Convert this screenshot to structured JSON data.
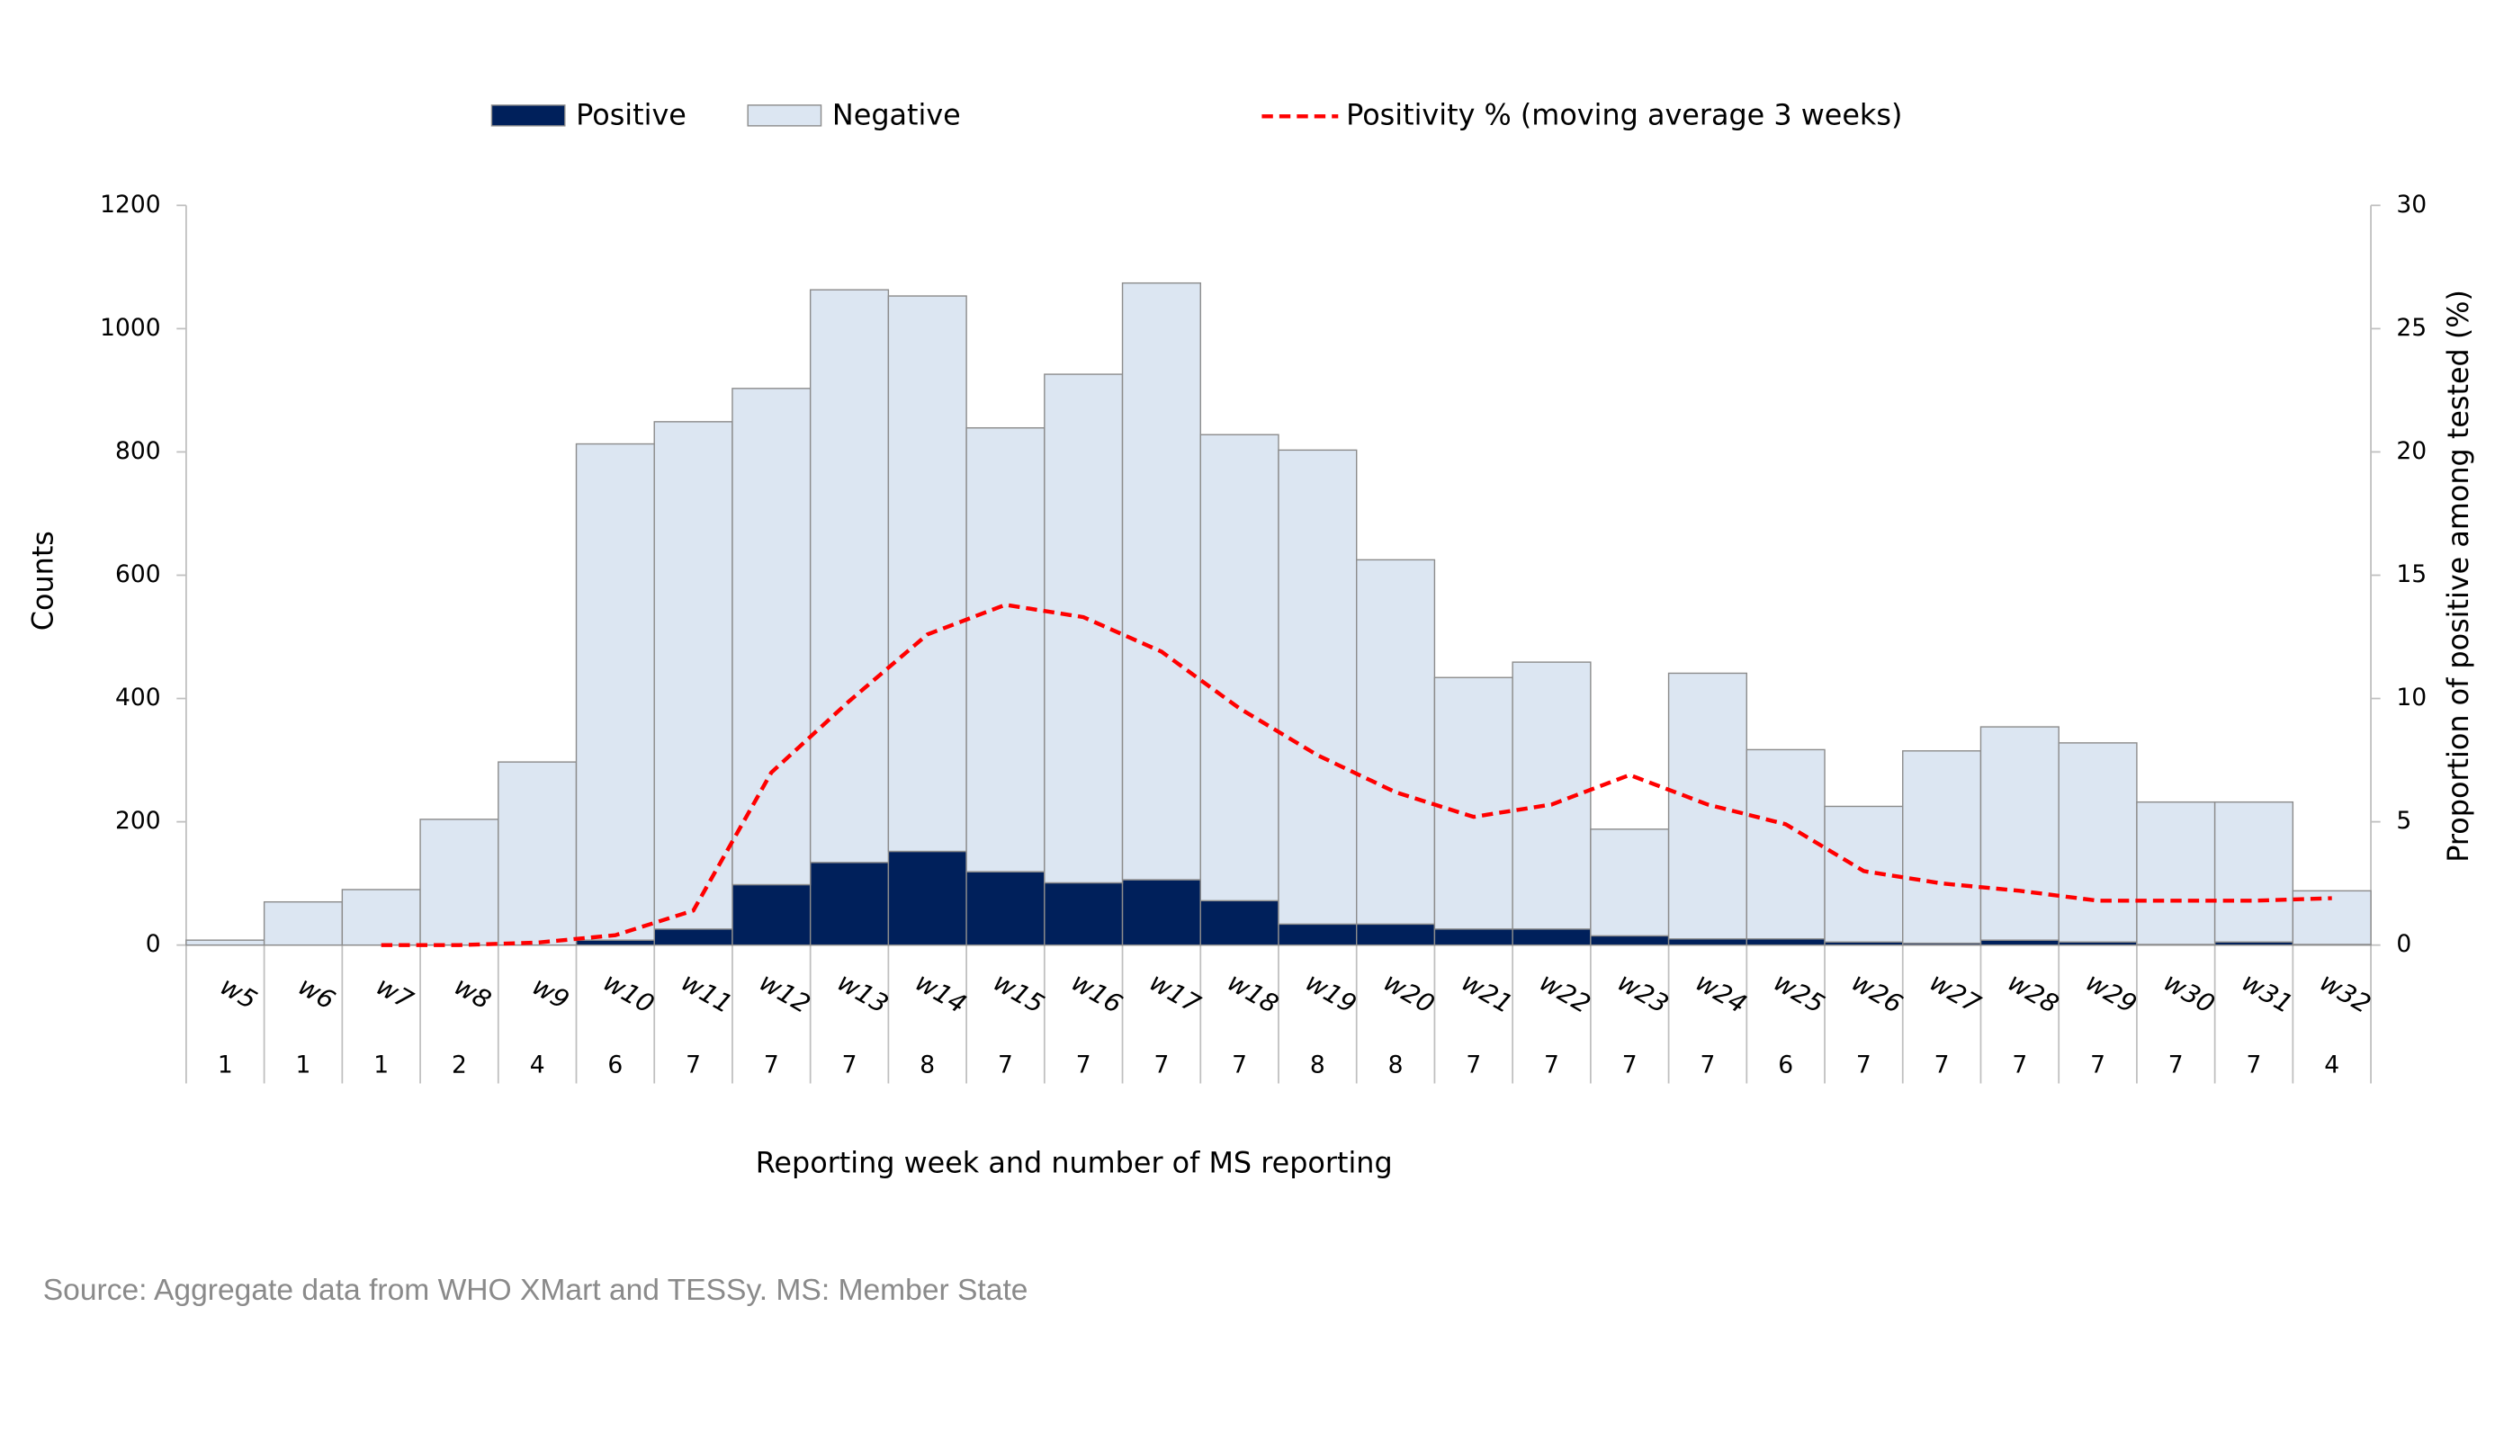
{
  "chart_data": {
    "type": "bar",
    "stacked": true,
    "categories": [
      "w5",
      "w6",
      "w7",
      "w8",
      "w9",
      "w10",
      "w11",
      "w12",
      "w13",
      "w14",
      "w15",
      "w16",
      "w17",
      "w18",
      "w19",
      "w20",
      "w21",
      "w22",
      "w23",
      "w24",
      "w25",
      "w26",
      "w27",
      "w28",
      "w29",
      "w30",
      "w31",
      "w32"
    ],
    "ms_reporting": [
      1,
      1,
      1,
      2,
      4,
      6,
      7,
      7,
      7,
      8,
      7,
      7,
      7,
      7,
      8,
      8,
      7,
      7,
      7,
      7,
      6,
      7,
      7,
      7,
      7,
      7,
      7,
      4
    ],
    "series": [
      {
        "name": "Positive",
        "color": "#00205b",
        "values": [
          0,
          0,
          0,
          0,
          0,
          8,
          26,
          98,
          134,
          152,
          119,
          101,
          106,
          72,
          34,
          34,
          26,
          26,
          15,
          10,
          10,
          5,
          3,
          8,
          5,
          1,
          5,
          1
        ]
      },
      {
        "name": "Negative",
        "color": "#dce6f2",
        "values": [
          8,
          70,
          90,
          204,
          297,
          805,
          823,
          805,
          929,
          901,
          720,
          825,
          968,
          756,
          769,
          591,
          408,
          433,
          173,
          431,
          307,
          220,
          312,
          346,
          323,
          231,
          227,
          87
        ]
      },
      {
        "name": "Positivity % (moving average 3 weeks)",
        "color": "#ff0000",
        "type": "line",
        "dashed": true,
        "axis": "y2",
        "values": [
          null,
          null,
          0,
          0,
          0.1,
          0.4,
          1.4,
          7.0,
          9.9,
          12.6,
          13.8,
          13.3,
          11.9,
          9.6,
          7.7,
          6.2,
          5.2,
          5.7,
          6.9,
          5.7,
          4.9,
          3.0,
          2.5,
          2.2,
          1.8,
          1.8,
          1.8,
          1.9
        ]
      }
    ],
    "ylim": [
      0,
      1200
    ],
    "yticks": [
      0,
      200,
      400,
      600,
      800,
      1000,
      1200
    ],
    "y2lim": [
      0,
      30
    ],
    "y2ticks": [
      0,
      5,
      10,
      15,
      20,
      25,
      30
    ],
    "ylabel": "Counts",
    "y2label": "Proportion  of positive among tested (%)",
    "xlabel": "Reporting week and number  of MS reporting",
    "legend": "top",
    "grid": false,
    "source": "Source:  Aggregate data from WHO XMart and TESSy. MS: Member State"
  }
}
